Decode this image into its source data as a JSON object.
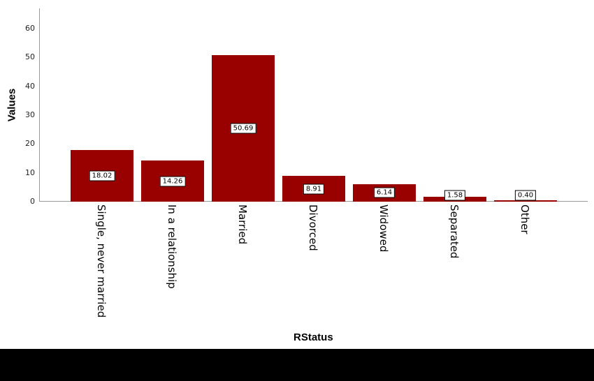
{
  "chart_data": {
    "type": "bar",
    "title": "",
    "xlabel": "RStatus",
    "ylabel": "Values",
    "ylim": [
      0,
      66
    ],
    "yticks": [
      0,
      10,
      20,
      30,
      40,
      50,
      60
    ],
    "grid": false,
    "legend": null,
    "bar_color": "#990000",
    "categories": [
      "Single, never married",
      "In a relationship",
      "Married",
      "Divorced",
      "Widowed",
      "Separated",
      "Other"
    ],
    "values": [
      18.02,
      14.26,
      50.69,
      8.91,
      6.14,
      1.58,
      0.4
    ],
    "data_labels": [
      "18.02",
      "14.26",
      "50.69",
      "8.91",
      "6.14",
      "1.58",
      "0.40"
    ]
  }
}
